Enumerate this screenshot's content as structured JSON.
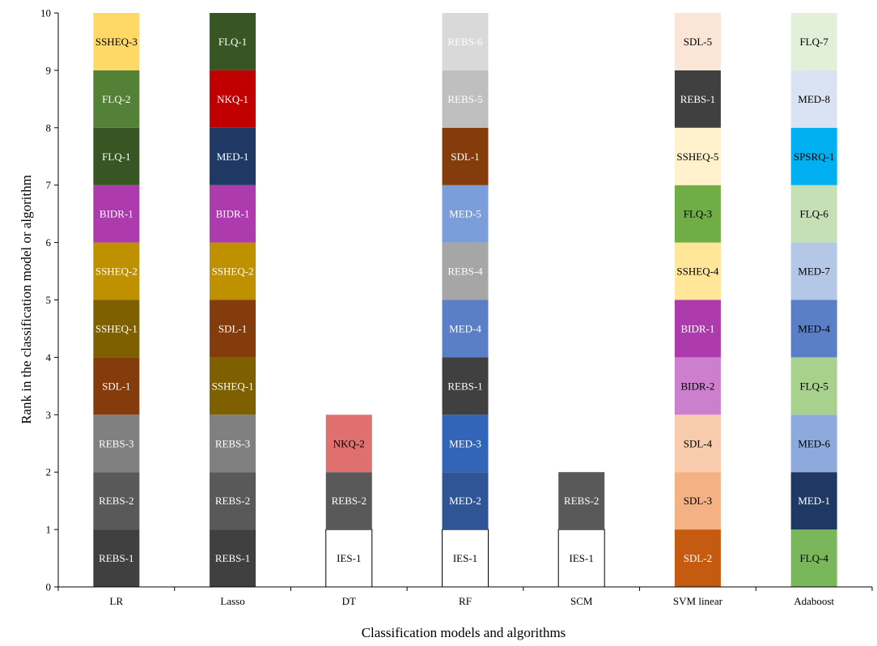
{
  "chart_data": {
    "type": "bar",
    "subtype": "stacked-rank",
    "xlabel": "Classification models and algorithms",
    "ylabel": "Rank in the classification model or algorithm",
    "ylim": [
      0,
      10
    ],
    "yticks": [
      0,
      1,
      2,
      3,
      4,
      5,
      6,
      7,
      8,
      9,
      10
    ],
    "grid": false,
    "categories": [
      "LR",
      "Lasso",
      "DT",
      "RF",
      "SCM",
      "SVM linear",
      "Adaboost"
    ],
    "stacks": [
      {
        "category": "LR",
        "segments": [
          {
            "label": "REBS-1",
            "color": "#404040",
            "text_color": "#ffffff"
          },
          {
            "label": "REBS-2",
            "color": "#595959",
            "text_color": "#ffffff"
          },
          {
            "label": "REBS-3",
            "color": "#808080",
            "text_color": "#ffffff"
          },
          {
            "label": "SDL-1",
            "color": "#843C0C",
            "text_color": "#ffffff"
          },
          {
            "label": "SSHEQ-1",
            "color": "#7F6000",
            "text_color": "#ffffff"
          },
          {
            "label": "SSHEQ-2",
            "color": "#BF9000",
            "text_color": "#ffffff"
          },
          {
            "label": "BIDR-1",
            "color": "#AE3BAE",
            "text_color": "#ffffff"
          },
          {
            "label": "FLQ-1",
            "color": "#375623",
            "text_color": "#ffffff"
          },
          {
            "label": "FLQ-2",
            "color": "#538135",
            "text_color": "#ffffff"
          },
          {
            "label": "SSHEQ-3",
            "color": "#FFD966",
            "text_color": "#000000"
          }
        ]
      },
      {
        "category": "Lasso",
        "segments": [
          {
            "label": "REBS-1",
            "color": "#404040",
            "text_color": "#ffffff"
          },
          {
            "label": "REBS-2",
            "color": "#595959",
            "text_color": "#ffffff"
          },
          {
            "label": "REBS-3",
            "color": "#808080",
            "text_color": "#ffffff"
          },
          {
            "label": "SSHEQ-1",
            "color": "#7F6000",
            "text_color": "#ffffff"
          },
          {
            "label": "SDL-1",
            "color": "#843C0C",
            "text_color": "#ffffff"
          },
          {
            "label": "SSHEQ-2",
            "color": "#BF9000",
            "text_color": "#ffffff"
          },
          {
            "label": "BIDR-1",
            "color": "#AE3BAE",
            "text_color": "#ffffff"
          },
          {
            "label": "MED-1",
            "color": "#1F3864",
            "text_color": "#ffffff"
          },
          {
            "label": "NKQ-1",
            "color": "#C00000",
            "text_color": "#ffffff"
          },
          {
            "label": "FLQ-1",
            "color": "#375623",
            "text_color": "#ffffff"
          }
        ]
      },
      {
        "category": "DT",
        "segments": [
          {
            "label": "IES-1",
            "color": "#ffffff",
            "text_color": "#000000",
            "outline": true
          },
          {
            "label": "REBS-2",
            "color": "#595959",
            "text_color": "#ffffff"
          },
          {
            "label": "NKQ-2",
            "color": "#E07070",
            "text_color": "#000000"
          }
        ]
      },
      {
        "category": "RF",
        "segments": [
          {
            "label": "IES-1",
            "color": "#ffffff",
            "text_color": "#000000",
            "outline": true
          },
          {
            "label": "MED-2",
            "color": "#2F5597",
            "text_color": "#ffffff"
          },
          {
            "label": "MED-3",
            "color": "#3264B8",
            "text_color": "#ffffff"
          },
          {
            "label": "REBS-1",
            "color": "#404040",
            "text_color": "#ffffff"
          },
          {
            "label": "MED-4",
            "color": "#5B7FC7",
            "text_color": "#ffffff"
          },
          {
            "label": "REBS-4",
            "color": "#A6A6A6",
            "text_color": "#ffffff"
          },
          {
            "label": "MED-5",
            "color": "#7B9EDB",
            "text_color": "#ffffff"
          },
          {
            "label": "SDL-1",
            "color": "#843C0C",
            "text_color": "#ffffff"
          },
          {
            "label": "REBS-5",
            "color": "#BFBFBF",
            "text_color": "#ffffff"
          },
          {
            "label": "REBS-6",
            "color": "#D9D9D9",
            "text_color": "#ffffff"
          }
        ]
      },
      {
        "category": "SCM",
        "segments": [
          {
            "label": "IES-1",
            "color": "#ffffff",
            "text_color": "#000000",
            "outline": true
          },
          {
            "label": "REBS-2",
            "color": "#595959",
            "text_color": "#ffffff"
          }
        ]
      },
      {
        "category": "SVM linear",
        "segments": [
          {
            "label": "SDL-2",
            "color": "#C55A11",
            "text_color": "#ffffff"
          },
          {
            "label": "SDL-3",
            "color": "#F4B183",
            "text_color": "#000000"
          },
          {
            "label": "SDL-4",
            "color": "#F8CBAD",
            "text_color": "#000000"
          },
          {
            "label": "BIDR-2",
            "color": "#CC7FCC",
            "text_color": "#000000"
          },
          {
            "label": "BIDR-1",
            "color": "#AE3BAE",
            "text_color": "#ffffff"
          },
          {
            "label": "SSHEQ-4",
            "color": "#FFE699",
            "text_color": "#000000"
          },
          {
            "label": "FLQ-3",
            "color": "#70AD47",
            "text_color": "#000000"
          },
          {
            "label": "SSHEQ-5",
            "color": "#FFF2CC",
            "text_color": "#000000"
          },
          {
            "label": "REBS-1",
            "color": "#404040",
            "text_color": "#ffffff"
          },
          {
            "label": "SDL-5",
            "color": "#FBE5D6",
            "text_color": "#000000"
          }
        ]
      },
      {
        "category": "Adaboost",
        "segments": [
          {
            "label": "FLQ-4",
            "color": "#7AB65A",
            "text_color": "#000000"
          },
          {
            "label": "MED-1",
            "color": "#1F3864",
            "text_color": "#ffffff"
          },
          {
            "label": "MED-6",
            "color": "#8EA9DB",
            "text_color": "#000000"
          },
          {
            "label": "FLQ-5",
            "color": "#A9D18E",
            "text_color": "#000000"
          },
          {
            "label": "MED-4",
            "color": "#5B7FC7",
            "text_color": "#000000"
          },
          {
            "label": "MED-7",
            "color": "#B4C7E7",
            "text_color": "#000000"
          },
          {
            "label": "FLQ-6",
            "color": "#C5E0B4",
            "text_color": "#000000"
          },
          {
            "label": "SPSRQ-1",
            "color": "#00B0F0",
            "text_color": "#000000"
          },
          {
            "label": "MED-8",
            "color": "#DAE3F3",
            "text_color": "#000000"
          },
          {
            "label": "FLQ-7",
            "color": "#E2F0D9",
            "text_color": "#000000"
          }
        ]
      }
    ]
  }
}
